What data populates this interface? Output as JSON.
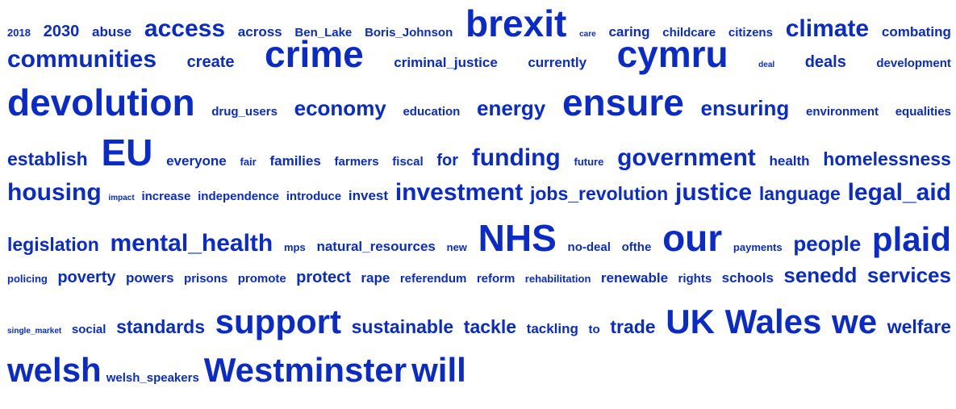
{
  "colors": {
    "word": "#0a2bc7",
    "background": "#ffffff"
  },
  "rows": [
    [
      [
        "2018",
        2
      ],
      [
        "2030",
        5
      ],
      [
        "abuse",
        4
      ],
      [
        "access",
        8
      ],
      [
        "across",
        4
      ],
      [
        "Ben_Lake",
        3
      ],
      [
        "Boris_Johnson",
        3
      ],
      [
        "brexit",
        11
      ],
      [
        "care",
        1
      ],
      [
        "caring",
        4
      ],
      [
        "childcare",
        3
      ],
      [
        "citizens",
        3
      ],
      [
        "climate",
        8
      ],
      [
        "combating",
        4
      ]
    ],
    [
      [
        "communities",
        8
      ],
      [
        "create",
        5
      ],
      [
        "crime",
        11
      ],
      [
        "criminal_justice",
        4
      ],
      [
        "currently",
        4
      ],
      [
        "cymru",
        11
      ],
      [
        "deal",
        1
      ],
      [
        "deals",
        5
      ],
      [
        "development",
        3
      ]
    ],
    [
      [
        "devolution",
        11
      ],
      [
        "drug_users",
        3
      ],
      [
        "economy",
        7
      ],
      [
        "education",
        3
      ],
      [
        "energy",
        7
      ],
      [
        "ensure",
        11
      ],
      [
        "ensuring",
        7
      ],
      [
        "environment",
        3
      ],
      [
        "equalities",
        3
      ]
    ],
    [
      [
        "establish",
        6
      ],
      [
        "EU",
        11
      ],
      [
        "everyone",
        4
      ],
      [
        "fair",
        2
      ],
      [
        "families",
        4
      ],
      [
        "farmers",
        3
      ],
      [
        "fiscal",
        3
      ],
      [
        "for",
        5
      ],
      [
        "funding",
        8
      ],
      [
        "future",
        2
      ],
      [
        "government",
        8
      ],
      [
        "health",
        4
      ],
      [
        "homelessness",
        6
      ]
    ],
    [
      [
        "housing",
        8
      ],
      [
        "impact",
        1
      ],
      [
        "increase",
        3
      ],
      [
        "independence",
        3
      ],
      [
        "introduce",
        3
      ],
      [
        "invest",
        4
      ],
      [
        "investment",
        8
      ],
      [
        "jobs_revolution",
        6
      ],
      [
        "justice",
        8
      ],
      [
        "language",
        6
      ],
      [
        "legal_aid",
        8
      ]
    ],
    [
      [
        "legislation",
        6
      ],
      [
        "mental_health",
        8
      ],
      [
        "mps",
        2
      ],
      [
        "natural_resources",
        4
      ],
      [
        "new",
        2
      ],
      [
        "NHS",
        11
      ],
      [
        "no-deal",
        3
      ],
      [
        "ofthe",
        3
      ],
      [
        "our",
        11
      ],
      [
        "payments",
        2
      ],
      [
        "people",
        7
      ],
      [
        "plaid",
        10
      ]
    ],
    [
      [
        "policing",
        2
      ],
      [
        "poverty",
        5
      ],
      [
        "powers",
        4
      ],
      [
        "prisons",
        3
      ],
      [
        "promote",
        3
      ],
      [
        "protect",
        5
      ],
      [
        "rape",
        4
      ],
      [
        "referendum",
        3
      ],
      [
        "reform",
        3
      ],
      [
        "rehabilitation",
        2
      ],
      [
        "renewable",
        4
      ],
      [
        "rights",
        3
      ],
      [
        "schools",
        4
      ],
      [
        "senedd",
        7
      ],
      [
        "services",
        7
      ]
    ],
    [
      [
        "single_market",
        1
      ],
      [
        "social",
        3
      ],
      [
        "standards",
        6
      ],
      [
        "support",
        10
      ],
      [
        "sustainable",
        6
      ],
      [
        "tackle",
        6
      ],
      [
        "tackling",
        4
      ],
      [
        "to",
        3
      ],
      [
        "trade",
        6
      ],
      [
        "UK",
        10
      ],
      [
        "Wales",
        10
      ],
      [
        "we",
        10
      ],
      [
        "welfare",
        6
      ]
    ],
    [
      [
        "welsh",
        10
      ],
      [
        "welsh_speakers",
        3
      ],
      [
        "Westminster",
        10
      ],
      [
        "will",
        10
      ]
    ]
  ]
}
